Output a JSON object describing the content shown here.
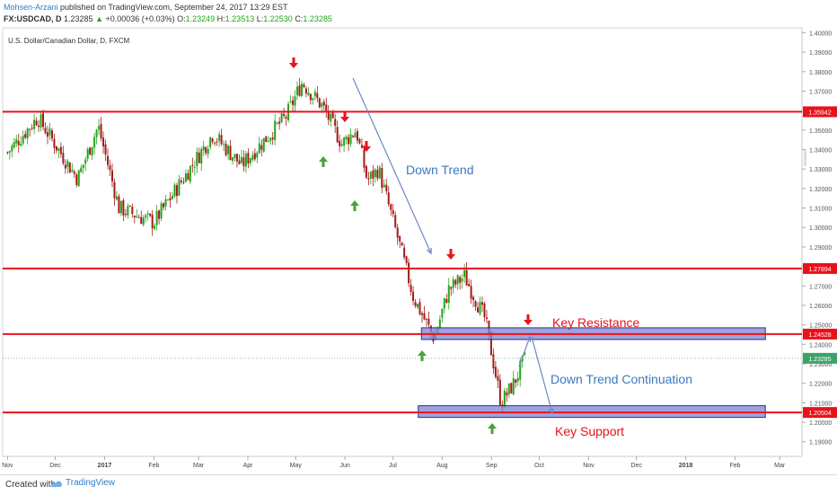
{
  "header": {
    "author": "Mohsen-Arzani",
    "published": "published on TradingView.com, September 24, 2017 13:29 EST",
    "symbol": "FX:USDCAD, D",
    "price": "1.23285",
    "change": "+0.00036 (+0.03%)",
    "o_label": "O:",
    "o_value": "1.23249",
    "h_label": "H:",
    "h_value": "1.23513",
    "l_label": "L:",
    "l_value": "1.22530",
    "c_label": "C:",
    "c_value": "1.23285"
  },
  "footer": {
    "created": "Created with",
    "brand": "TradingView"
  },
  "colors": {
    "up": "#26a31a",
    "down": "#a31a1a",
    "level": "#e8121b",
    "zone_fill": "#7d84d0",
    "zone_stroke": "#2a2f8c",
    "trend": "#6f86c9",
    "text_blue": "#3b79c0",
    "text_red": "#e8121b"
  },
  "chart_data": {
    "type": "candlestick",
    "title": "U.S. Dollar/Canadian Dollar, D, FXCM",
    "ylim": [
      1.1825,
      1.4025
    ],
    "y_ticks": [
      1.19,
      1.2,
      1.21,
      1.22,
      1.23,
      1.24,
      1.25,
      1.26,
      1.27,
      1.28,
      1.29,
      1.3,
      1.31,
      1.32,
      1.33,
      1.34,
      1.35,
      1.36,
      1.37,
      1.38,
      1.39,
      1.4
    ],
    "y_tick_labels": [
      "1.19000",
      "1.20000",
      "1.21000",
      "1.22000",
      "1.23000",
      "1.24000",
      "1.25000",
      "1.26000",
      "1.27000",
      "1.28000",
      "1.29000",
      "1.30000",
      "1.31000",
      "1.32000",
      "1.33000",
      "1.34000",
      "1.35000",
      "1.36000",
      "1.37000",
      "1.38000",
      "1.39000",
      "1.40000"
    ],
    "x_ticks": [
      "Nov",
      "Dec",
      "2017",
      "Feb",
      "Mar",
      "Apr",
      "May",
      "Jun",
      "Jul",
      "Aug",
      "Sep",
      "Oct",
      "Nov",
      "Dec",
      "2018",
      "Feb",
      "Mar"
    ],
    "horizontal_levels": [
      1.35942,
      1.27894,
      1.24528,
      1.20504
    ],
    "level_labels": [
      "1.35942",
      "1.27894",
      "1.24528",
      "1.20504"
    ],
    "current_price_label": "1.23285",
    "zones": [
      {
        "name": "Key Resistance",
        "from_date": "2017-07-19",
        "to_date": "2018-02-20",
        "low": 1.2425,
        "high": 1.2485
      },
      {
        "name": "Key Support",
        "from_date": "2017-07-17",
        "to_date": "2018-02-20",
        "low": 1.2025,
        "high": 1.2085
      }
    ],
    "annotations": [
      "Down Trend",
      "Key Resistance",
      "Down Trend Continuation",
      "Key Support"
    ],
    "key_points": [
      {
        "date": "2016-11-01",
        "price": 1.3385
      },
      {
        "date": "2016-11-20",
        "price": 1.3565
      },
      {
        "date": "2016-12-15",
        "price": 1.325
      },
      {
        "date": "2016-12-28",
        "price": 1.352
      },
      {
        "date": "2017-01-10",
        "price": 1.31
      },
      {
        "date": "2017-02-01",
        "price": 1.3025
      },
      {
        "date": "2017-03-10",
        "price": 1.348
      },
      {
        "date": "2017-03-28",
        "price": 1.332
      },
      {
        "date": "2017-04-25",
        "price": 1.357
      },
      {
        "date": "2017-05-05",
        "price": 1.3745
      },
      {
        "date": "2017-05-18",
        "price": 1.362
      },
      {
        "date": "2017-05-30",
        "price": 1.343
      },
      {
        "date": "2017-06-08",
        "price": 1.35
      },
      {
        "date": "2017-06-15",
        "price": 1.324
      },
      {
        "date": "2017-06-22",
        "price": 1.33
      },
      {
        "date": "2017-07-05",
        "price": 1.292
      },
      {
        "date": "2017-07-14",
        "price": 1.264
      },
      {
        "date": "2017-07-27",
        "price": 1.243
      },
      {
        "date": "2017-08-05",
        "price": 1.268
      },
      {
        "date": "2017-08-15",
        "price": 1.275
      },
      {
        "date": "2017-08-28",
        "price": 1.253
      },
      {
        "date": "2017-09-07",
        "price": 1.21
      },
      {
        "date": "2017-09-15",
        "price": 1.22
      },
      {
        "date": "2017-09-22",
        "price": 1.2328
      }
    ]
  }
}
